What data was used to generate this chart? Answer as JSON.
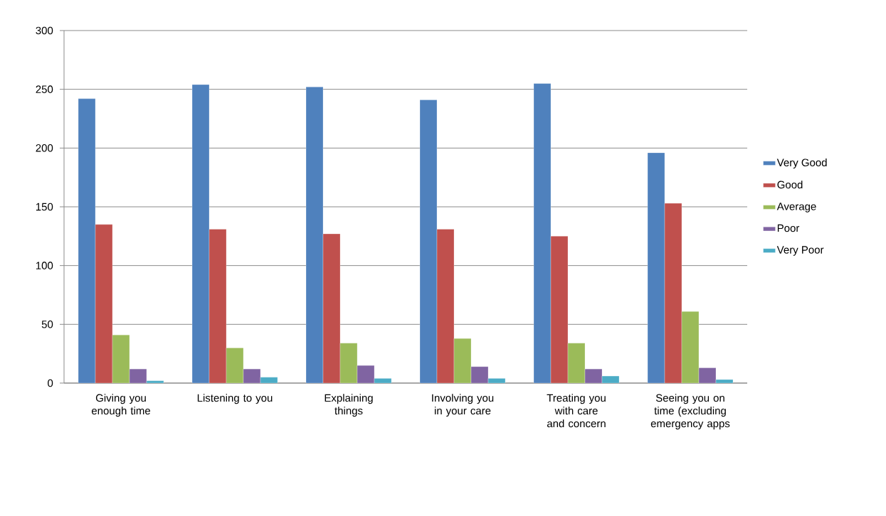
{
  "chart_data": {
    "type": "bar",
    "categories": [
      "Giving you enough time",
      "Listening to you",
      "Explaining things",
      "Involving you in your care",
      "Treating you with care and concern",
      "Seeing you on time (excluding emergency apps"
    ],
    "series": [
      {
        "name": "Very Good",
        "color": "#4f81bd",
        "values": [
          242,
          254,
          252,
          241,
          255,
          196
        ]
      },
      {
        "name": "Good",
        "color": "#c0504d",
        "values": [
          135,
          131,
          127,
          131,
          125,
          153
        ]
      },
      {
        "name": "Average",
        "color": "#9bbb59",
        "values": [
          41,
          30,
          34,
          38,
          34,
          61
        ]
      },
      {
        "name": "Poor",
        "color": "#8064a2",
        "values": [
          12,
          12,
          15,
          14,
          12,
          13
        ]
      },
      {
        "name": "Very Poor",
        "color": "#4bacc6",
        "values": [
          2,
          5,
          4,
          4,
          6,
          3
        ]
      }
    ],
    "ylim": [
      0,
      300
    ],
    "yticks": [
      0,
      50,
      100,
      150,
      200,
      250,
      300
    ],
    "grid": "y",
    "legend": "right"
  }
}
